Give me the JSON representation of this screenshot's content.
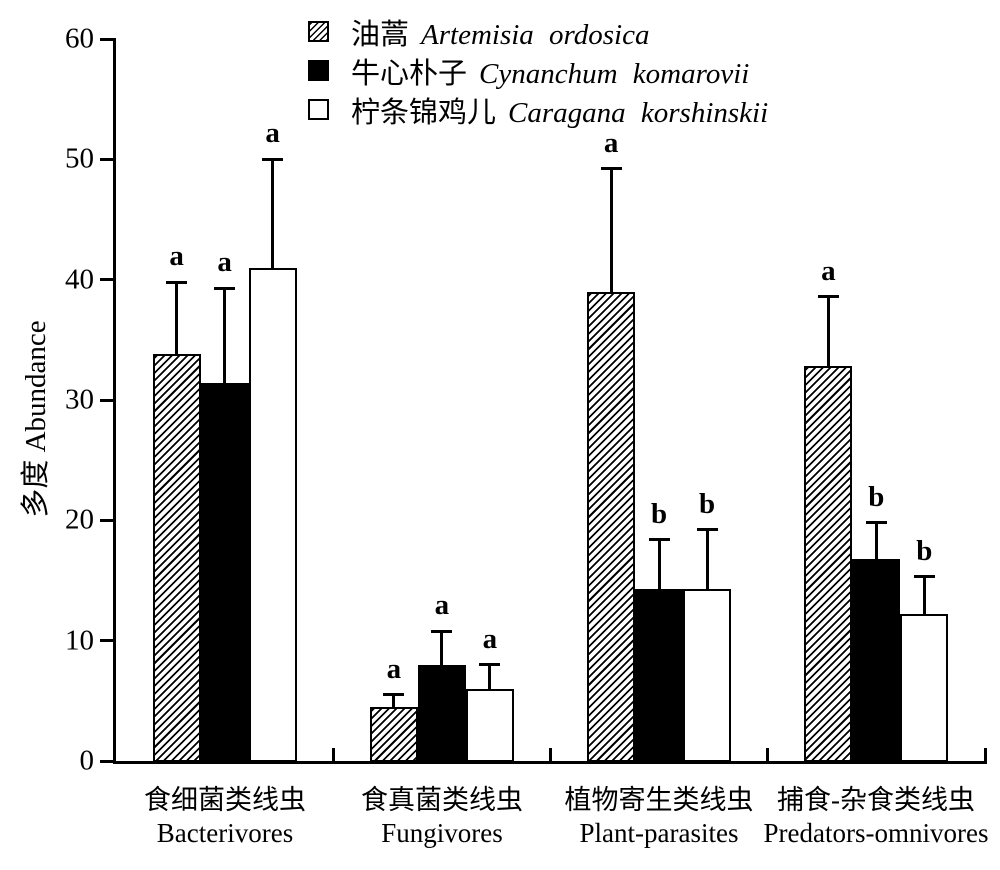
{
  "chart_data": {
    "type": "bar",
    "title": "",
    "ylabel": "多度 Abundance",
    "xlabel": "",
    "ylim": [
      0,
      60
    ],
    "yticks": [
      0,
      10,
      20,
      30,
      40,
      50,
      60
    ],
    "grid": false,
    "legend_position": "top-center",
    "colors": {
      "ink": "#000000",
      "background": "#ffffff"
    },
    "categories": [
      {
        "cn": "食细菌类线虫",
        "en": "Bacterivores"
      },
      {
        "cn": "食真菌类线虫",
        "en": "Fungivores"
      },
      {
        "cn": "植物寄生类线虫",
        "en": "Plant-parasites"
      },
      {
        "cn": "捕食-杂食类线虫",
        "en": "Predators-omnivores"
      }
    ],
    "series": [
      {
        "name_cn": "油蒿",
        "name_latin": "Artemisia ordosica",
        "fill": "hatch",
        "values": [
          33.8,
          4.5,
          39.0,
          32.8
        ],
        "errors": [
          6.0,
          1.0,
          10.2,
          5.8
        ],
        "letters": [
          "a",
          "a",
          "a",
          "a"
        ]
      },
      {
        "name_cn": "牛心朴子",
        "name_latin": "Cynanchum komarovii",
        "fill": "black",
        "values": [
          31.4,
          8.0,
          14.3,
          16.8
        ],
        "errors": [
          7.9,
          2.8,
          4.1,
          3.0
        ],
        "letters": [
          "a",
          "a",
          "b",
          "b"
        ]
      },
      {
        "name_cn": "柠条锦鸡儿",
        "name_latin": "Caragana korshinskii",
        "fill": "white",
        "values": [
          41.0,
          6.0,
          14.3,
          12.2
        ],
        "errors": [
          9.0,
          2.0,
          4.9,
          3.1
        ],
        "letters": [
          "a",
          "a",
          "b",
          "b"
        ]
      }
    ]
  }
}
